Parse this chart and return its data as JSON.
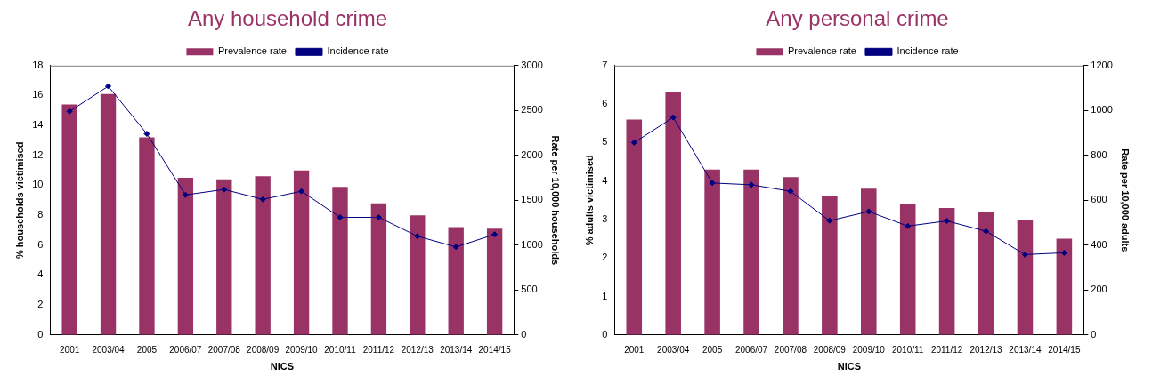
{
  "chart_data": [
    {
      "type": "bar",
      "title": "Any household crime",
      "xlabel": "NICS",
      "ylabel": "% households victimised",
      "y2label": "Rate per 10,000 households",
      "categories": [
        "2001",
        "2003/04",
        "2005",
        "2006/07",
        "2007/08",
        "2008/09",
        "2009/10",
        "2010/11",
        "2011/12",
        "2012/13",
        "2013/14",
        "2014/15"
      ],
      "series": [
        {
          "name": "Prevalence rate",
          "color": "#993366",
          "values": [
            15.4,
            16.1,
            13.2,
            10.5,
            10.4,
            10.6,
            11.0,
            9.9,
            8.8,
            8.0,
            7.2,
            7.1
          ]
        },
        {
          "name": "Incidence rate",
          "type": "line",
          "axis": "y2",
          "color": "#000080",
          "values": [
            2490,
            2770,
            2240,
            1560,
            1620,
            1510,
            1600,
            1310,
            1310,
            1100,
            980,
            1120
          ]
        }
      ],
      "ylim": [
        0,
        18
      ],
      "yticks": [
        0,
        2,
        4,
        6,
        8,
        10,
        12,
        14,
        16,
        18
      ],
      "y2lim": [
        0,
        3000
      ],
      "y2ticks": [
        0,
        500,
        1000,
        1500,
        2000,
        2500,
        3000
      ],
      "legend": "top",
      "marker": "diamond",
      "line_style": "solid",
      "grid": false
    },
    {
      "type": "bar",
      "title": "Any personal crime",
      "xlabel": "NICS",
      "ylabel": "% adults victimised",
      "y2label": "Rate per 10,000 adults",
      "categories": [
        "2001",
        "2003/04",
        "2005",
        "2006/07",
        "2007/08",
        "2008/09",
        "2009/10",
        "2010/11",
        "2011/12",
        "2012/13",
        "2013/14",
        "2014/15"
      ],
      "series": [
        {
          "name": "Prevalence rate",
          "color": "#993366",
          "values": [
            5.6,
            6.3,
            4.3,
            4.3,
            4.1,
            3.6,
            3.8,
            3.4,
            3.3,
            3.2,
            3.0,
            2.5
          ]
        },
        {
          "name": "Incidence rate",
          "type": "line",
          "axis": "y2",
          "color": "#000080",
          "values": [
            857,
            969,
            677,
            669,
            640,
            509,
            550,
            485,
            508,
            462,
            358,
            366
          ]
        }
      ],
      "ylim": [
        0,
        7
      ],
      "yticks": [
        0,
        1,
        2,
        3,
        4,
        5,
        6,
        7
      ],
      "y2lim": [
        0,
        1200
      ],
      "y2ticks": [
        0,
        200,
        400,
        600,
        800,
        1000,
        1200
      ],
      "legend": "top",
      "marker": "diamond",
      "line_style": "solid",
      "grid": false
    }
  ]
}
